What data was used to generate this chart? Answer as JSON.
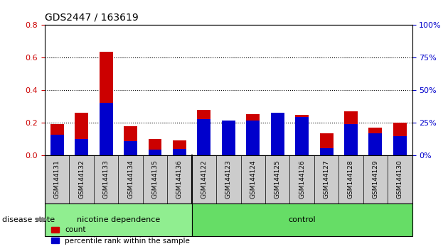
{
  "title": "GDS2447 / 163619",
  "categories": [
    "GSM144131",
    "GSM144132",
    "GSM144133",
    "GSM144134",
    "GSM144135",
    "GSM144136",
    "GSM144122",
    "GSM144123",
    "GSM144124",
    "GSM144125",
    "GSM144126",
    "GSM144127",
    "GSM144128",
    "GSM144129",
    "GSM144130"
  ],
  "count_values": [
    0.195,
    0.265,
    0.635,
    0.18,
    0.1,
    0.095,
    0.28,
    0.215,
    0.255,
    0.265,
    0.25,
    0.135,
    0.27,
    0.17,
    0.2
  ],
  "percentile_values": [
    0.13,
    0.1,
    0.325,
    0.09,
    0.035,
    0.04,
    0.225,
    0.215,
    0.215,
    0.265,
    0.235,
    0.045,
    0.195,
    0.135,
    0.12
  ],
  "red_color": "#cc0000",
  "blue_color": "#0000cc",
  "ylim_left": [
    0,
    0.8
  ],
  "ylim_right": [
    0,
    100
  ],
  "yticks_left": [
    0,
    0.2,
    0.4,
    0.6,
    0.8
  ],
  "yticks_right": [
    0,
    25,
    50,
    75,
    100
  ],
  "group1_label": "nicotine dependence",
  "group2_label": "control",
  "disease_state_label": "disease state",
  "legend_count": "count",
  "legend_percentile": "percentile rank within the sample",
  "group1_color": "#90ee90",
  "group2_color": "#66dd66",
  "bg_color": "#ffffff",
  "bar_bg_color": "#cccccc",
  "bar_width": 0.55,
  "n_group1": 6,
  "n_group2": 9
}
